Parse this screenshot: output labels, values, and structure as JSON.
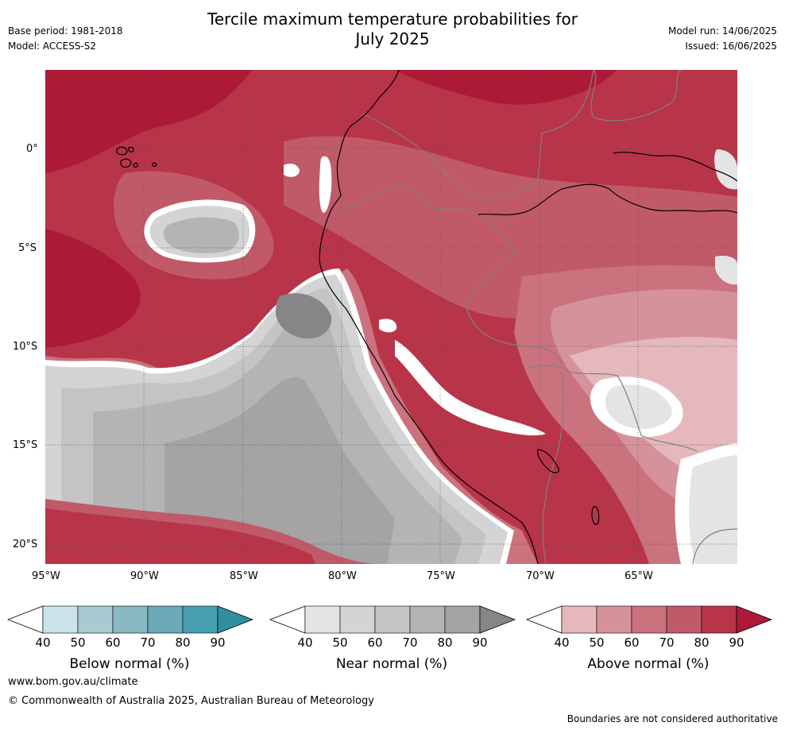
{
  "header": {
    "title_line1": "Tercile maximum temperature probabilities for",
    "title_line2": "July 2025",
    "base_period": "Base period: 1981-2018",
    "model": "Model: ACCESS-S2",
    "model_run": "Model run: 14/06/2025",
    "issued": "Issued: 16/06/2025"
  },
  "map": {
    "lat_labels": [
      "0°",
      "5°S",
      "10°S",
      "15°S",
      "20°S"
    ],
    "lon_labels": [
      "95°W",
      "90°W",
      "85°W",
      "80°W",
      "75°W",
      "70°W",
      "65°W"
    ]
  },
  "colorbars": [
    {
      "label": "Below normal (%)",
      "ticks": [
        "40",
        "50",
        "60",
        "70",
        "80",
        "90"
      ],
      "colors": [
        "#c9e3e8",
        "#a8cbd1",
        "#8ab8c2",
        "#6aaab6",
        "#47a0b0",
        "#2f8fa0"
      ]
    },
    {
      "label": "Near normal (%)",
      "ticks": [
        "40",
        "50",
        "60",
        "70",
        "80",
        "90"
      ],
      "colors": [
        "#e4e4e4",
        "#d4d4d4",
        "#c4c4c4",
        "#b4b4b4",
        "#a4a4a4",
        "#868686"
      ]
    },
    {
      "label": "Above normal (%)",
      "ticks": [
        "40",
        "50",
        "60",
        "70",
        "80",
        "90"
      ],
      "colors": [
        "#e4b8bc",
        "#d6929a",
        "#ca727e",
        "#c05a68",
        "#b83449",
        "#ad1a38"
      ]
    }
  ],
  "footer": {
    "website": "www.bom.gov.au/climate",
    "copyright": "© Commonwealth of Australia 2025, Australian Bureau of Meteorology",
    "disclaimer": "Boundaries are not considered authoritative"
  }
}
